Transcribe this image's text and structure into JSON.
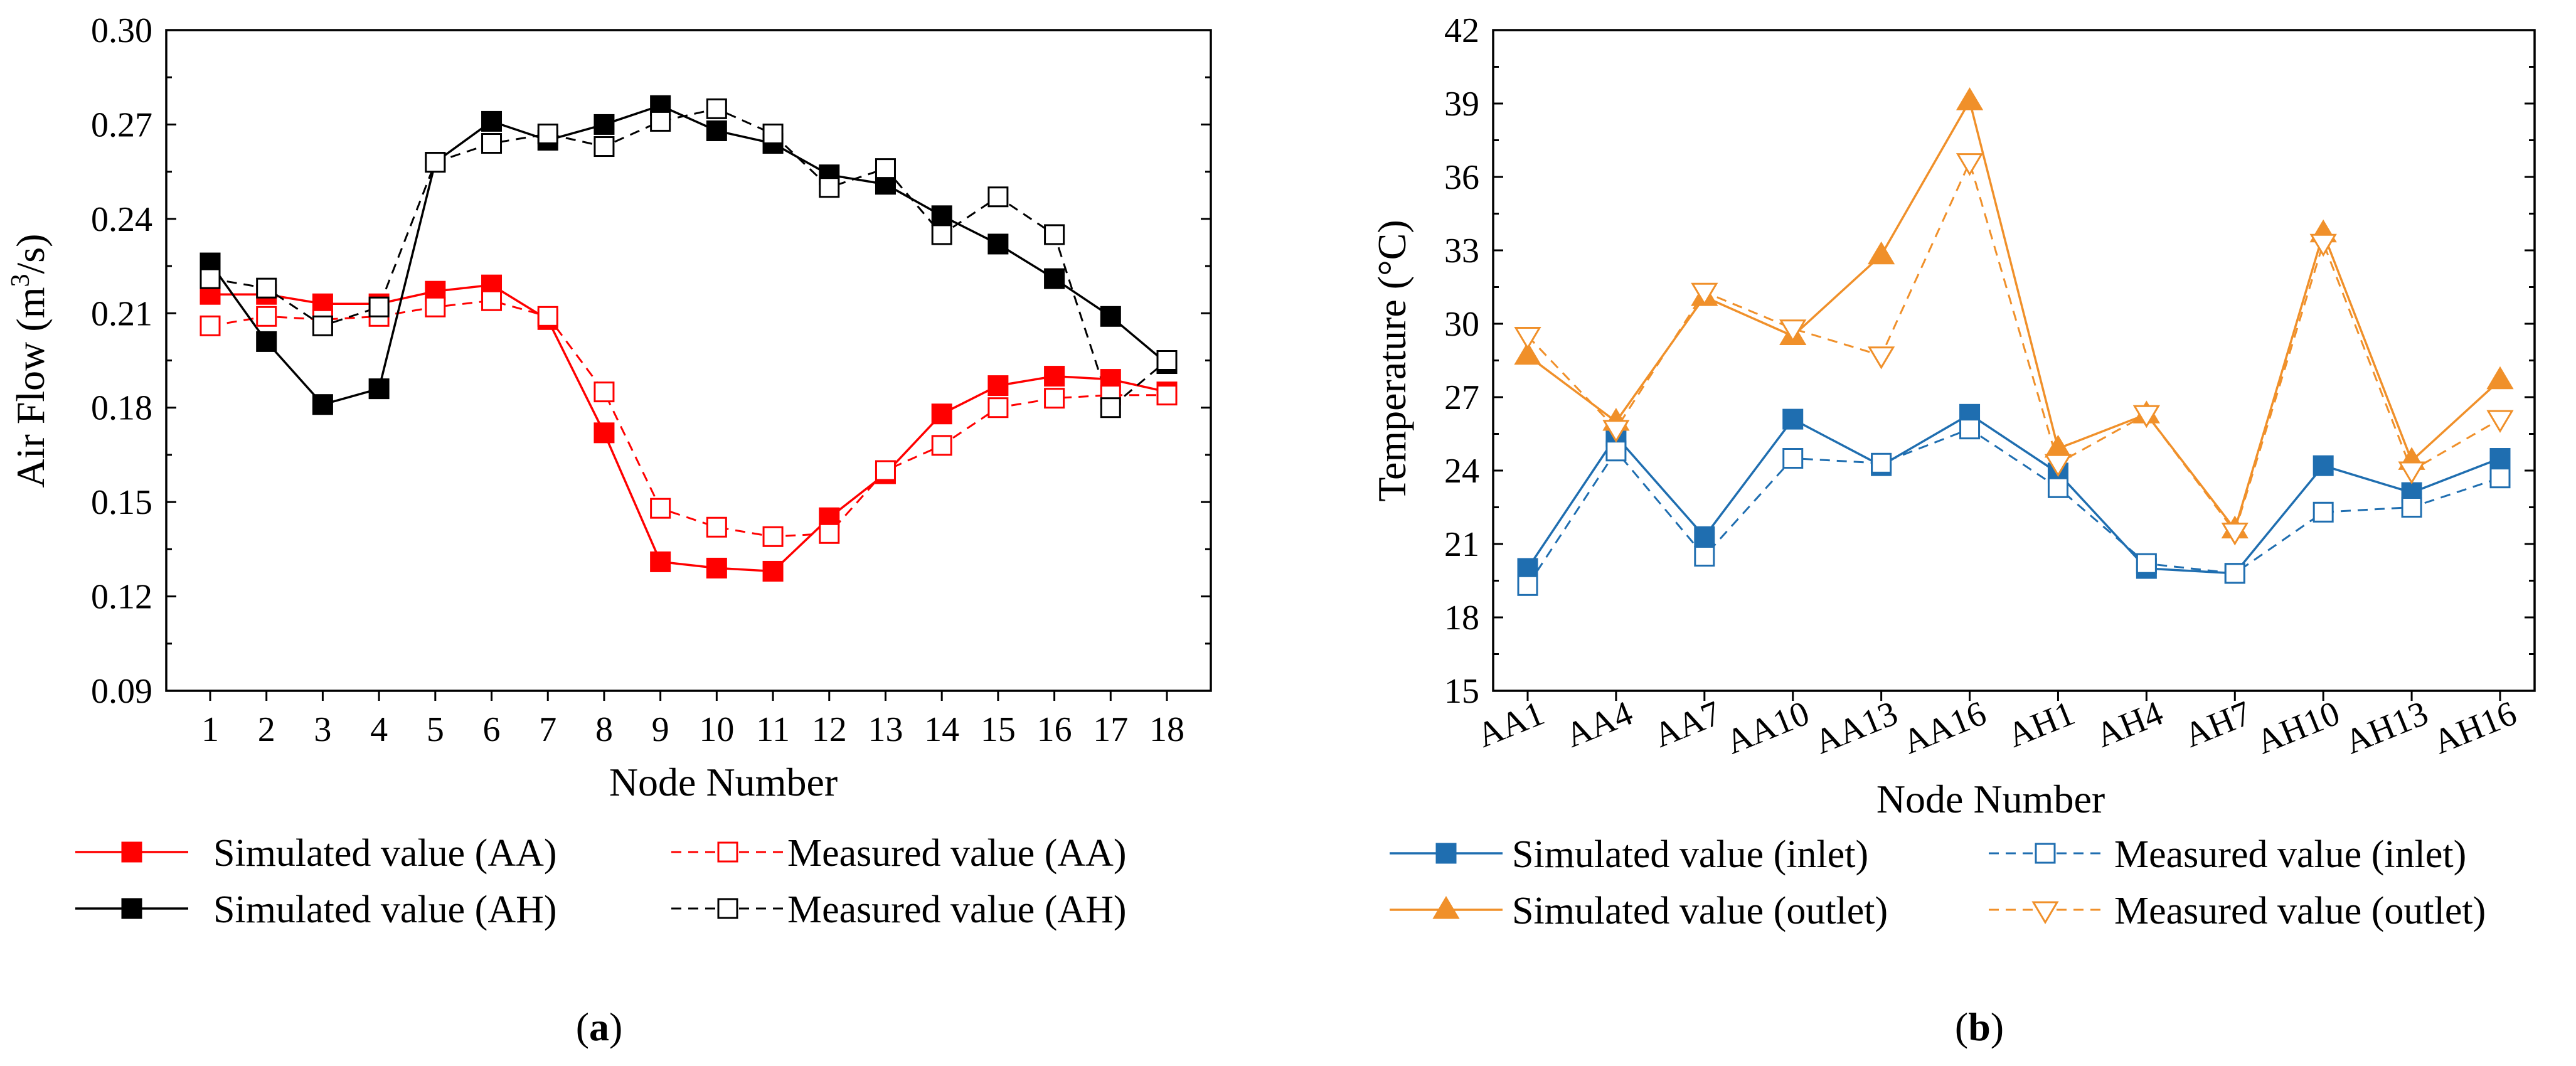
{
  "chart_data": [
    {
      "type": "line",
      "panel": "(a)",
      "panel_label": {
        "open": "(",
        "letter": "a",
        "close": ")"
      },
      "xlabel": "Node Number",
      "ylabel": "Air Flow (m³/s)",
      "ylabel_parts": {
        "before": "Air Flow (m",
        "sup": "3",
        "after": "/s)"
      },
      "ylim": [
        0.09,
        0.3
      ],
      "yticks": [
        "0.09",
        "0.12",
        "0.15",
        "0.18",
        "0.21",
        "0.24",
        "0.27",
        "0.30"
      ],
      "categories": [
        "1",
        "2",
        "3",
        "4",
        "5",
        "6",
        "7",
        "8",
        "9",
        "10",
        "11",
        "12",
        "13",
        "14",
        "15",
        "16",
        "17",
        "18"
      ],
      "legend_placement": "bottom",
      "series": [
        {
          "name": "Simulated value (AA)",
          "color": "#ff0000",
          "dash": "solid",
          "marker": "filled-square",
          "values": [
            0.216,
            0.216,
            0.213,
            0.213,
            0.217,
            0.219,
            0.208,
            0.172,
            0.131,
            0.129,
            0.128,
            0.145,
            0.159,
            0.178,
            0.187,
            0.19,
            0.189,
            0.185
          ]
        },
        {
          "name": "Measured value (AA)",
          "color": "#ff0000",
          "dash": "dashed",
          "marker": "open-square",
          "values": [
            0.206,
            0.209,
            0.208,
            0.209,
            0.212,
            0.214,
            0.209,
            0.185,
            0.148,
            0.142,
            0.139,
            0.14,
            0.16,
            0.168,
            0.18,
            0.183,
            0.184,
            0.184
          ]
        },
        {
          "name": "Simulated value (AH)",
          "color": "#000000",
          "dash": "solid",
          "marker": "filled-square",
          "values": [
            0.226,
            0.201,
            0.181,
            0.186,
            0.258,
            0.271,
            0.265,
            0.27,
            0.276,
            0.268,
            0.264,
            0.254,
            0.251,
            0.241,
            0.232,
            0.221,
            0.209,
            0.194
          ]
        },
        {
          "name": "Measured value (AH)",
          "color": "#000000",
          "dash": "dashed",
          "marker": "open-square",
          "values": [
            0.221,
            0.218,
            0.206,
            0.212,
            0.258,
            0.264,
            0.267,
            0.263,
            0.271,
            0.275,
            0.267,
            0.25,
            0.256,
            0.235,
            0.247,
            0.235,
            0.18,
            0.195
          ]
        }
      ]
    },
    {
      "type": "line",
      "panel": "(b)",
      "panel_label": {
        "open": "(",
        "letter": "b",
        "close": ")"
      },
      "xlabel": "Node Number",
      "ylabel": "Temperature (°C)",
      "ylim": [
        15,
        42
      ],
      "yticks": [
        "15",
        "18",
        "21",
        "24",
        "27",
        "30",
        "33",
        "36",
        "39",
        "42"
      ],
      "categories": [
        "AA1",
        "AA4",
        "AA7",
        "AA10",
        "AA13",
        "AA16",
        "AH1",
        "AH4",
        "AH7",
        "AH10",
        "AH13",
        "AH16"
      ],
      "legend_placement": "bottom",
      "series": [
        {
          "name": "Simulated value (inlet)",
          "color": "#1f6eb0",
          "dash": "solid",
          "marker": "filled-square",
          "values": [
            20.0,
            25.4,
            21.3,
            26.1,
            24.2,
            26.3,
            23.9,
            20.0,
            19.8,
            24.2,
            23.1,
            24.5
          ]
        },
        {
          "name": "Measured value (inlet)",
          "color": "#1f6eb0",
          "dash": "dashed",
          "marker": "open-square",
          "values": [
            19.3,
            24.8,
            20.5,
            24.5,
            24.3,
            25.7,
            23.3,
            20.2,
            19.8,
            22.3,
            22.5,
            23.7
          ]
        },
        {
          "name": "Simulated value (outlet)",
          "color": "#f0902a",
          "dash": "solid",
          "marker": "filled-triangle-up",
          "values": [
            28.7,
            26.0,
            31.1,
            29.5,
            32.8,
            39.1,
            24.9,
            26.3,
            21.6,
            33.7,
            24.4,
            27.7
          ]
        },
        {
          "name": "Measured value (outlet)",
          "color": "#f0902a",
          "dash": "dashed",
          "marker": "open-triangle-down",
          "values": [
            29.5,
            25.7,
            31.3,
            29.8,
            28.7,
            36.6,
            24.3,
            26.3,
            21.5,
            33.3,
            24.0,
            26.1
          ]
        }
      ]
    }
  ]
}
